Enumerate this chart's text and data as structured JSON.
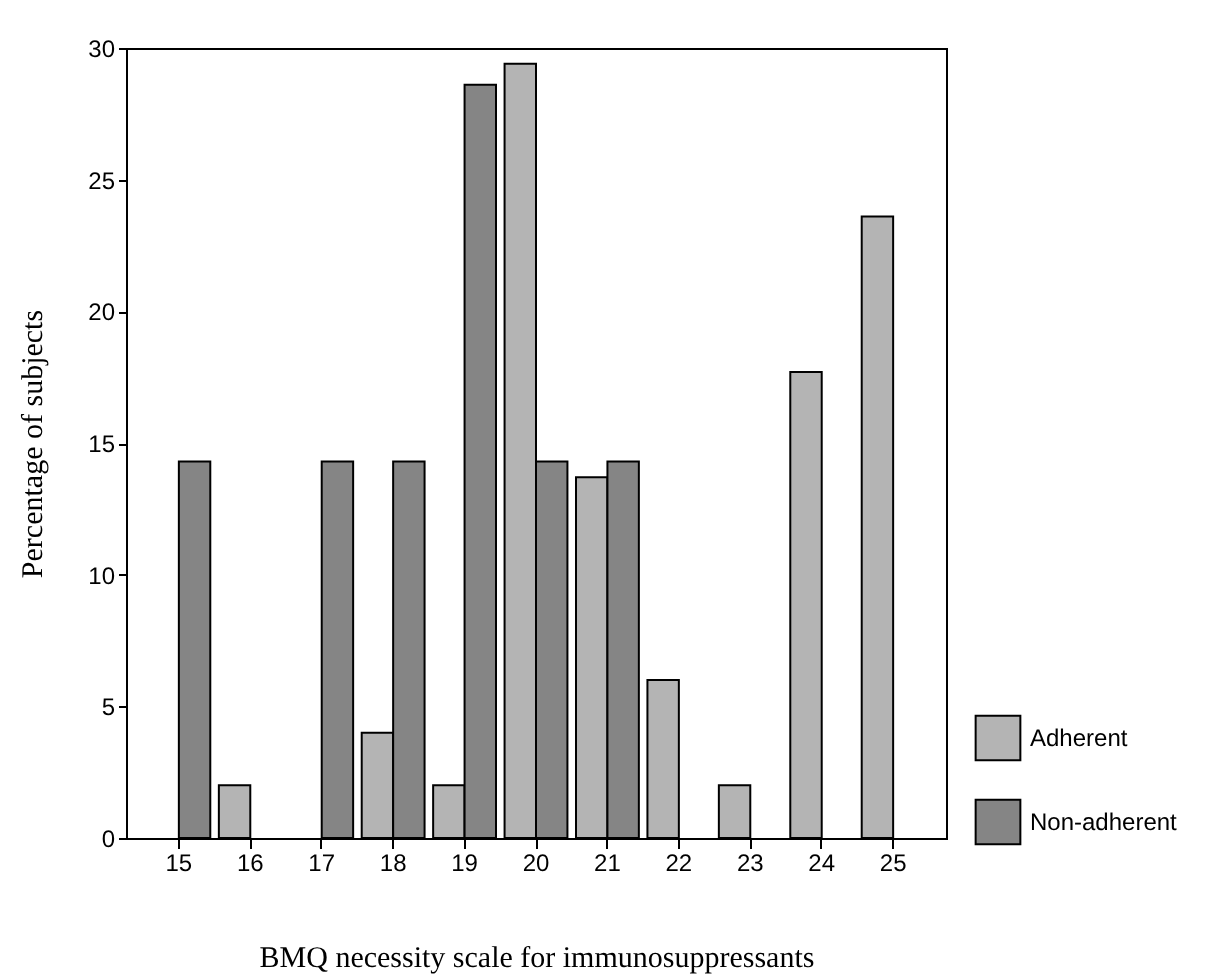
{
  "chart_data": {
    "type": "bar",
    "xlabel": "BMQ necessity scale for immunosuppressants",
    "ylabel": "Percentage of subjects",
    "categories": [
      "15",
      "16",
      "17",
      "18",
      "19",
      "20",
      "21",
      "22",
      "23",
      "24",
      "25"
    ],
    "series": [
      {
        "name": "Adherent",
        "color": "#b4b4b4",
        "values": [
          null,
          2,
          null,
          4,
          2,
          29.4,
          13.7,
          6,
          2,
          17.7,
          23.6
        ]
      },
      {
        "name": "Non-adherent",
        "color": "#858585",
        "values": [
          14.3,
          null,
          14.3,
          14.3,
          28.6,
          14.3,
          14.3,
          null,
          null,
          null,
          null
        ]
      }
    ],
    "ylim": [
      0,
      30
    ],
    "yticks": [
      0,
      5,
      10,
      15,
      20,
      25,
      30
    ],
    "grid": false,
    "legend": "bottom right"
  }
}
